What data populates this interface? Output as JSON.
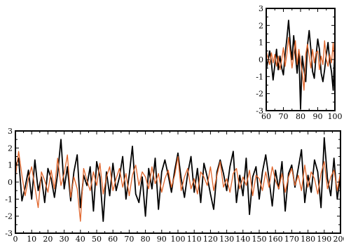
{
  "chart_data": [
    {
      "id": "inset",
      "type": "line",
      "title": "",
      "xlabel": "",
      "ylabel": "",
      "xlim": [
        60,
        100
      ],
      "ylim": [
        -3,
        3
      ],
      "xticks": [
        60,
        70,
        80,
        90,
        100
      ],
      "yticks": [
        -3,
        -2,
        -1,
        0,
        1,
        2,
        3
      ],
      "grid": false,
      "series": [
        {
          "color": "#000000",
          "x": [
            60,
            61,
            62,
            63,
            64,
            65,
            66,
            67,
            68,
            69,
            70,
            71,
            72,
            73,
            74,
            75,
            76,
            77,
            78,
            79,
            80,
            81,
            82,
            83,
            84,
            85,
            86,
            87,
            88,
            89,
            90,
            91,
            92,
            93,
            94,
            95,
            96,
            97,
            98,
            99,
            100
          ],
          "y": [
            -0.6,
            -0.1,
            0.5,
            -0.2,
            -1.2,
            -0.3,
            0.6,
            -0.6,
            0.2,
            -0.5,
            -0.9,
            0.3,
            1.2,
            2.3,
            0.9,
            0.0,
            1.4,
            0.3,
            -0.8,
            0.5,
            -2.9,
            0.2,
            -0.6,
            -1.3,
            0.8,
            1.7,
            0.6,
            -0.7,
            -1.1,
            0.2,
            1.2,
            0.6,
            -0.8,
            -1.3,
            -0.6,
            0.3,
            1.0,
            -0.1,
            -0.7,
            -1.8,
            0.8
          ]
        },
        {
          "color": "#e0642a",
          "x": [
            60,
            61,
            62,
            63,
            64,
            65,
            66,
            67,
            68,
            69,
            70,
            71,
            72,
            73,
            74,
            75,
            76,
            77,
            78,
            79,
            80,
            81,
            82,
            83,
            84,
            85,
            86,
            87,
            88,
            89,
            90,
            91,
            92,
            93,
            94,
            95,
            96,
            97,
            98,
            99,
            100
          ],
          "y": [
            0.5,
            0.1,
            -0.3,
            0.4,
            -0.2,
            0.3,
            -0.4,
            0.2,
            -0.6,
            0.0,
            0.7,
            -0.4,
            0.3,
            1.3,
            0.4,
            -0.5,
            0.2,
            1.1,
            -0.3,
            0.6,
            -0.1,
            -0.8,
            -1.8,
            0.3,
            0.9,
            0.2,
            -0.5,
            0.6,
            -0.2,
            0.4,
            0.5,
            -0.6,
            0.2,
            -0.3,
            1.1,
            0.0,
            -0.4,
            0.3,
            -0.2,
            1.0,
            -0.6
          ]
        }
      ]
    },
    {
      "id": "main",
      "type": "line",
      "title": "",
      "xlabel": "",
      "ylabel": "",
      "xlim": [
        0,
        200
      ],
      "ylim": [
        -3,
        3
      ],
      "xticks": [
        0,
        10,
        20,
        30,
        40,
        50,
        60,
        70,
        80,
        90,
        100,
        110,
        120,
        130,
        140,
        150,
        160,
        170,
        180,
        190,
        200
      ],
      "yticks": [
        -3,
        -2,
        -1,
        0,
        1,
        2,
        3
      ],
      "grid": false,
      "series": [
        {
          "color": "#000000",
          "x": [
            0,
            2,
            4,
            6,
            8,
            10,
            12,
            14,
            16,
            18,
            20,
            22,
            24,
            26,
            28,
            30,
            32,
            34,
            36,
            38,
            40,
            42,
            44,
            46,
            48,
            50,
            52,
            54,
            56,
            58,
            60,
            62,
            64,
            66,
            68,
            70,
            72,
            74,
            76,
            78,
            80,
            82,
            84,
            86,
            88,
            90,
            92,
            94,
            96,
            98,
            100,
            102,
            104,
            106,
            108,
            110,
            112,
            114,
            116,
            118,
            120,
            122,
            124,
            126,
            128,
            130,
            132,
            134,
            136,
            138,
            140,
            142,
            144,
            146,
            148,
            150,
            152,
            154,
            156,
            158,
            160,
            162,
            164,
            166,
            168,
            170,
            172,
            174,
            176,
            178,
            180,
            182,
            184,
            186,
            188,
            190,
            192,
            194,
            196,
            198,
            200
          ],
          "y": [
            0.9,
            1.4,
            -1.1,
            -0.3,
            0.7,
            -1.0,
            1.3,
            -0.5,
            0.3,
            -1.2,
            0.8,
            0.2,
            -0.9,
            0.5,
            2.5,
            -0.4,
            0.9,
            -1.1,
            0.6,
            1.6,
            -1.5,
            0.4,
            -0.2,
            0.9,
            -1.7,
            1.2,
            0.3,
            -2.3,
            0.6,
            -0.8,
            1.1,
            -0.5,
            0.3,
            1.5,
            -1.0,
            0.4,
            2.1,
            -0.7,
            -1.2,
            0.3,
            -2.0,
            0.8,
            -0.4,
            1.4,
            -1.6,
            0.6,
            1.3,
            0.4,
            -0.6,
            0.7,
            1.7,
            0.2,
            -0.9,
            0.5,
            1.5,
            -0.6,
            0.8,
            -1.2,
            1.1,
            0.3,
            -0.7,
            -1.6,
            0.6,
            1.3,
            0.5,
            -0.5,
            0.9,
            1.8,
            -1.2,
            0.4,
            -0.8,
            1.4,
            -1.9,
            0.3,
            0.9,
            -1.0,
            0.6,
            1.6,
            0.2,
            -1.4,
            0.7,
            -0.4,
            1.2,
            -1.7,
            0.5,
            1.0,
            -0.3,
            0.8,
            1.9,
            -1.2,
            0.4,
            -0.6,
            1.3,
            0.6,
            -1.5,
            2.6,
            0.2,
            -0.8,
            1.4,
            -1.0,
            0.4
          ]
        },
        {
          "color": "#e0642a",
          "x": [
            0,
            2,
            4,
            6,
            8,
            10,
            12,
            14,
            16,
            18,
            20,
            22,
            24,
            26,
            28,
            30,
            32,
            34,
            36,
            38,
            40,
            42,
            44,
            46,
            48,
            50,
            52,
            54,
            56,
            58,
            60,
            62,
            64,
            66,
            68,
            70,
            72,
            74,
            76,
            78,
            80,
            82,
            84,
            86,
            88,
            90,
            92,
            94,
            96,
            98,
            100,
            102,
            104,
            106,
            108,
            110,
            112,
            114,
            116,
            118,
            120,
            122,
            124,
            126,
            128,
            130,
            132,
            134,
            136,
            138,
            140,
            142,
            144,
            146,
            148,
            150,
            152,
            154,
            156,
            158,
            160,
            162,
            164,
            166,
            168,
            170,
            172,
            174,
            176,
            178,
            180,
            182,
            184,
            186,
            188,
            190,
            192,
            194,
            196,
            198,
            200
          ],
          "y": [
            0.3,
            1.8,
            0.4,
            -0.8,
            0.2,
            0.9,
            -0.3,
            -1.5,
            0.6,
            0.1,
            -0.6,
            0.7,
            -0.4,
            1.4,
            -0.2,
            0.5,
            1.6,
            -0.9,
            0.3,
            -0.4,
            -2.3,
            0.8,
            0.1,
            -0.5,
            0.6,
            -0.2,
            1.1,
            -0.7,
            0.3,
            0.9,
            -0.5,
            0.2,
            0.8,
            -0.3,
            0.5,
            -0.8,
            0.4,
            1.0,
            -0.2,
            0.6,
            0.3,
            -0.4,
            0.9,
            -0.1,
            0.5,
            -0.6,
            0.2,
            0.7,
            -0.3,
            0.4,
            1.5,
            -0.5,
            0.3,
            0.8,
            -0.4,
            0.2,
            -0.7,
            0.6,
            0.3,
            -0.2,
            0.9,
            -0.5,
            0.4,
            1.2,
            -0.3,
            0.2,
            -0.6,
            0.5,
            0.8,
            -0.4,
            0.3,
            -0.2,
            0.7,
            -0.8,
            0.4,
            0.2,
            -0.5,
            0.6,
            -0.3,
            0.9,
            0.1,
            -0.4,
            0.5,
            -0.6,
            0.3,
            0.8,
            -0.2,
            0.4,
            -0.5,
            1.0,
            -0.3,
            0.6,
            0.2,
            -0.7,
            0.5,
            1.2,
            -0.4,
            0.3,
            0.7,
            -0.5,
            0.6
          ]
        }
      ]
    }
  ]
}
